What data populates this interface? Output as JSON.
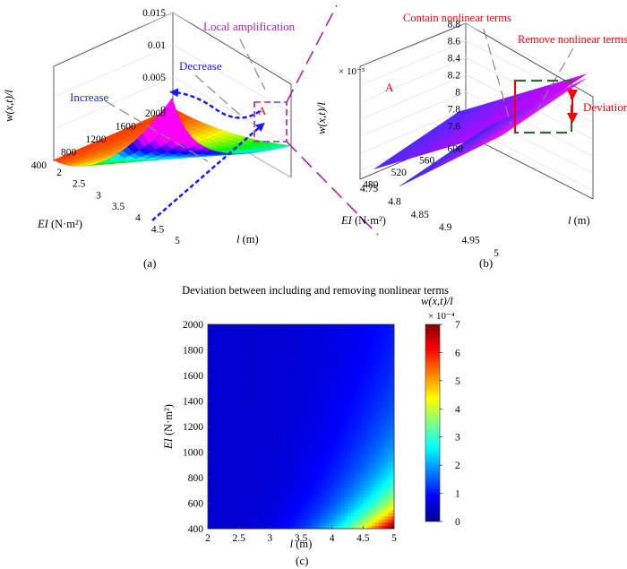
{
  "panels": {
    "a": "(a)",
    "b": "(b)",
    "c": "(c)"
  },
  "annotations": {
    "increase": "Increase",
    "decrease": "Decrease",
    "local_amplification": "Local amplification",
    "region_a": "A",
    "contain_nonlinear": "Contain nonlinear terms",
    "remove_nonlinear": "Remove nonlinear terms",
    "deviation": "Deviation"
  },
  "colors": {
    "blue_annotation": "#1a1aff",
    "red_annotation": "#ff0000",
    "purple_annotation": "#b020b0",
    "green_box": "#2e6b2e"
  },
  "chart_data": [
    {
      "id": "a",
      "type": "surface3d",
      "xlabel_main": "l",
      "xlabel_unit": " (m)",
      "ylabel_main": "EI",
      "ylabel_unit": " (N·m²)",
      "zlabel": "w(x,t)/l",
      "x_ticks": [
        "2",
        "2.5",
        "3",
        "3.5",
        "4",
        "4.5",
        "5"
      ],
      "y_ticks": [
        "400",
        "800",
        "1200",
        "1600",
        "2000"
      ],
      "z_ticks": [
        "0",
        "0.005",
        "0.01",
        "0.015"
      ],
      "xlim": [
        2,
        5
      ],
      "ylim": [
        400,
        2000
      ],
      "zlim": [
        0,
        0.015
      ],
      "colormap": "hsv"
    },
    {
      "id": "b",
      "type": "surface3d",
      "xlabel_main": "l",
      "xlabel_unit": " (m)",
      "ylabel_main": "EI",
      "ylabel_unit": " (N·m²)",
      "zlabel": "w(x,t)/l",
      "z_multiplier": "× 10⁻³",
      "x_ticks": [
        "4.75",
        "4.8",
        "4.85",
        "4.9",
        "4.95",
        "5"
      ],
      "y_ticks": [
        "480",
        "520",
        "560",
        "600"
      ],
      "z_ticks": [
        "7.6",
        "7.8",
        "8",
        "8.2",
        "8.4",
        "8.6",
        "8.8"
      ],
      "xlim": [
        4.75,
        5
      ],
      "ylim": [
        460,
        610
      ],
      "zlim": [
        7.5,
        8.9
      ],
      "series": [
        {
          "name": "Contain nonlinear terms"
        },
        {
          "name": "Remove nonlinear terms"
        }
      ]
    },
    {
      "id": "c",
      "type": "heatmap",
      "title": "Deviation between including and removing  nonlinear terms",
      "xlabel_main": "l",
      "xlabel_unit": " (m)",
      "ylabel_main": "EI",
      "ylabel_unit": " (N·m²)",
      "colorbar_label": "w(x,t)/l",
      "colorbar_multiplier": "× 10⁻⁴",
      "x_ticks": [
        "2",
        "2.5",
        "3",
        "3.5",
        "4",
        "4.5",
        "5"
      ],
      "y_ticks": [
        "400",
        "600",
        "800",
        "1000",
        "1200",
        "1400",
        "1600",
        "1800",
        "2000"
      ],
      "colorbar_ticks": [
        "0",
        "1",
        "2",
        "3",
        "4",
        "5",
        "6",
        "7"
      ],
      "xlim": [
        2,
        5
      ],
      "ylim": [
        400,
        2000
      ],
      "clim": [
        0,
        7
      ],
      "colormap": "jet"
    }
  ]
}
